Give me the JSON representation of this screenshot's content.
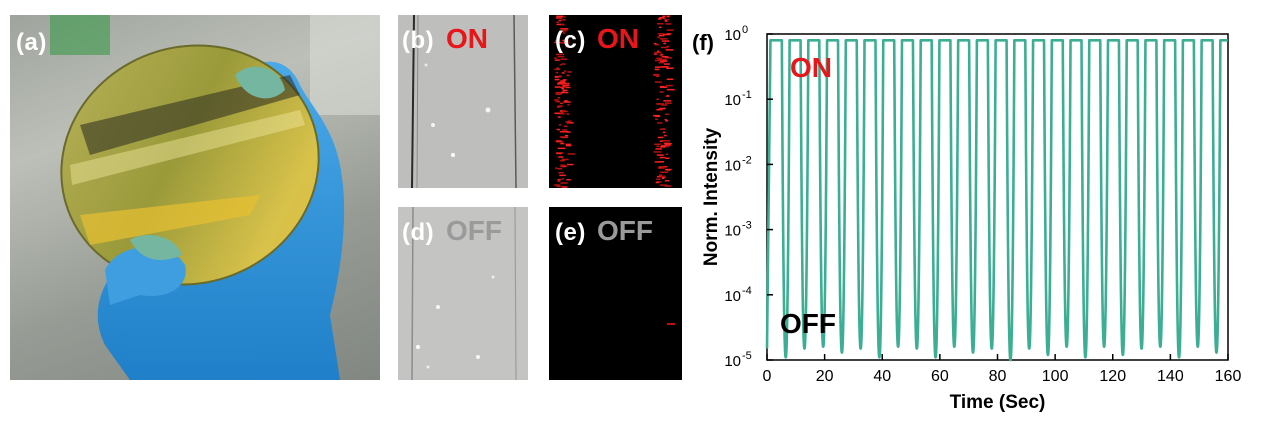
{
  "panels": {
    "a": {
      "label": "(a)"
    },
    "b": {
      "label": "(b)",
      "state": "ON"
    },
    "c": {
      "label": "(c)",
      "state": "ON"
    },
    "d": {
      "label": "(d)",
      "state": "OFF"
    },
    "e": {
      "label": "(e)",
      "state": "OFF"
    },
    "f": {
      "label": "(f)"
    }
  },
  "colors": {
    "on_label": "#e8161a",
    "off_label_light": "#9a9a9a",
    "off_label_dark": "#000000",
    "trace": "#3cae94"
  },
  "chart_data": {
    "type": "line",
    "title": "",
    "xlabel": "Time (Sec)",
    "ylabel": "Norm. Intensity",
    "xlim": [
      0,
      160
    ],
    "ylim": [
      1e-05,
      1
    ],
    "yscale": "log",
    "xticks": [
      "0",
      "20",
      "40",
      "60",
      "80",
      "100",
      "120",
      "140",
      "160"
    ],
    "yticks": [
      "10-5",
      "10-4",
      "10-3",
      "10-2",
      "10-1",
      "100"
    ],
    "annotations": [
      {
        "text": "ON",
        "color": "#e8161a"
      },
      {
        "text": "OFF",
        "color": "#000000"
      }
    ],
    "series": [
      {
        "period_sec": 6.5,
        "high_level": 0.8,
        "cycles": [
          {
            "t_min": 6.5,
            "low": 1.1e-05
          },
          {
            "t_min": 13.0,
            "low": 1.5e-05
          },
          {
            "t_min": 19.5,
            "low": 1.6e-05
          },
          {
            "t_min": 26.0,
            "low": 1.3e-05
          },
          {
            "t_min": 32.5,
            "low": 1.5e-05
          },
          {
            "t_min": 39.0,
            "low": 1.1e-05
          },
          {
            "t_min": 45.5,
            "low": 1.6e-05
          },
          {
            "t_min": 52.0,
            "low": 1.5e-05
          },
          {
            "t_min": 58.5,
            "low": 1.1e-05
          },
          {
            "t_min": 65.0,
            "low": 1.6e-05
          },
          {
            "t_min": 71.5,
            "low": 1.3e-05
          },
          {
            "t_min": 78.0,
            "low": 1.5e-05
          },
          {
            "t_min": 84.5,
            "low": 1e-05
          },
          {
            "t_min": 91.0,
            "low": 1.5e-05
          },
          {
            "t_min": 97.5,
            "low": 1.2e-05
          },
          {
            "t_min": 104.0,
            "low": 1.6e-05
          },
          {
            "t_min": 110.5,
            "low": 1.1e-05
          },
          {
            "t_min": 117.0,
            "low": 1.6e-05
          },
          {
            "t_min": 123.5,
            "low": 1.2e-05
          },
          {
            "t_min": 130.0,
            "low": 1.5e-05
          },
          {
            "t_min": 136.5,
            "low": 1.6e-05
          },
          {
            "t_min": 143.0,
            "low": 1.1e-05
          },
          {
            "t_min": 149.5,
            "low": 1.6e-05
          },
          {
            "t_min": 156.0,
            "low": 1.3e-05
          }
        ]
      }
    ]
  }
}
